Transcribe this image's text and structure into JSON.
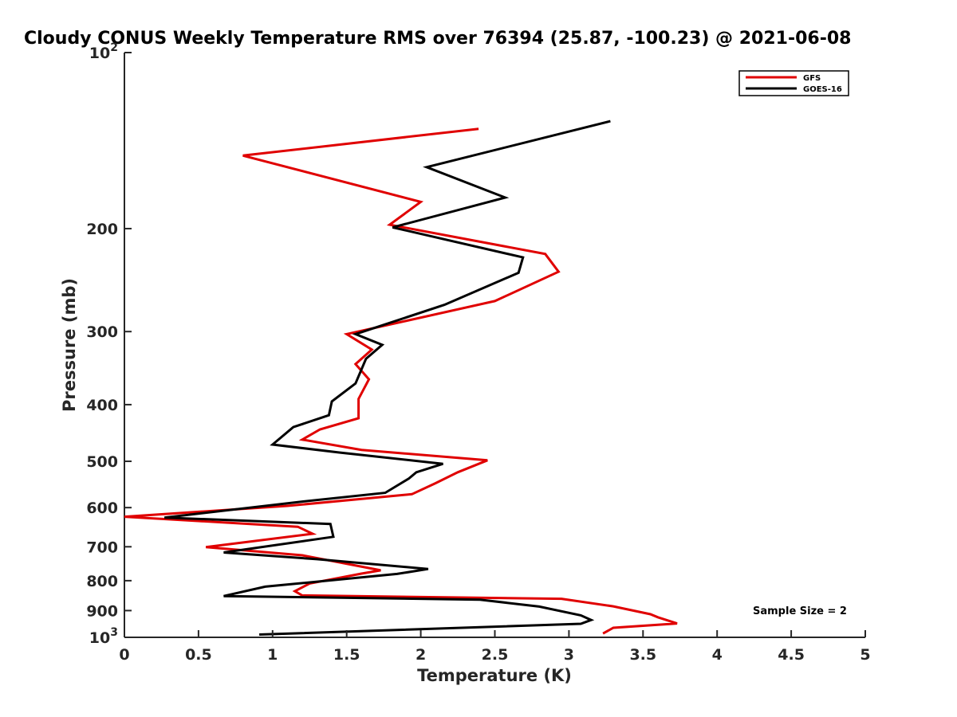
{
  "chart_data": {
    "type": "line",
    "title": "Cloudy CONUS Weekly Temperature RMS over 76394 (25.87, -100.23) @ 2021-06-08",
    "xlabel": "Temperature (K)",
    "ylabel": "Pressure (mb)",
    "xlim": [
      0,
      5
    ],
    "ylim": [
      100,
      1000
    ],
    "y_scale": "log",
    "y_reversed": true,
    "x_ticks": [
      "0",
      "0.5",
      "1",
      "1.5",
      "2",
      "2.5",
      "3",
      "3.5",
      "4",
      "4.5",
      "5"
    ],
    "y_ticks": [
      {
        "value": 100,
        "label": "10",
        "sup": "2"
      },
      {
        "value": 200,
        "label": "200"
      },
      {
        "value": 300,
        "label": "300"
      },
      {
        "value": 400,
        "label": "400"
      },
      {
        "value": 500,
        "label": "500"
      },
      {
        "value": 600,
        "label": "600"
      },
      {
        "value": 700,
        "label": "700"
      },
      {
        "value": 800,
        "label": "800"
      },
      {
        "value": 900,
        "label": "900"
      },
      {
        "value": 1000,
        "label": "10",
        "sup": "3"
      }
    ],
    "legend_position": "top-right",
    "grid": false,
    "annotation": "Sample Size = 2",
    "series": [
      {
        "name": "GFS",
        "color": "#e00000",
        "points": [
          [
            2.39,
            135
          ],
          [
            0.8,
            150
          ],
          [
            2.0,
            180
          ],
          [
            1.79,
            197
          ],
          [
            2.84,
            221
          ],
          [
            2.93,
            237
          ],
          [
            2.5,
            266
          ],
          [
            1.5,
            303
          ],
          [
            1.67,
            322
          ],
          [
            1.56,
            341
          ],
          [
            1.65,
            362
          ],
          [
            1.58,
            391
          ],
          [
            1.58,
            422
          ],
          [
            1.32,
            441
          ],
          [
            1.2,
            459
          ],
          [
            1.6,
            478
          ],
          [
            2.45,
            498
          ],
          [
            2.25,
            522
          ],
          [
            2.1,
            545
          ],
          [
            1.94,
            569
          ],
          [
            1.1,
            596
          ],
          [
            0.0,
            622
          ],
          [
            1.17,
            647
          ],
          [
            1.27,
            665
          ],
          [
            0.55,
            701
          ],
          [
            1.2,
            724
          ],
          [
            1.73,
            768
          ],
          [
            1.6,
            778
          ],
          [
            1.25,
            809
          ],
          [
            1.15,
            834
          ],
          [
            1.2,
            848
          ],
          [
            2.95,
            859
          ],
          [
            3.3,
            885
          ],
          [
            3.55,
            913
          ],
          [
            3.6,
            924
          ],
          [
            3.73,
            947
          ],
          [
            3.3,
            963
          ],
          [
            3.23,
            985
          ]
        ]
      },
      {
        "name": "GOES-16",
        "color": "#000000",
        "points": [
          [
            3.28,
            131
          ],
          [
            2.04,
            157
          ],
          [
            2.57,
            177
          ],
          [
            1.81,
            199
          ],
          [
            2.69,
            224
          ],
          [
            2.66,
            238
          ],
          [
            2.16,
            270
          ],
          [
            1.56,
            303
          ],
          [
            1.74,
            316
          ],
          [
            1.63,
            334
          ],
          [
            1.56,
            368
          ],
          [
            1.4,
            395
          ],
          [
            1.38,
            417
          ],
          [
            1.14,
            437
          ],
          [
            1.0,
            468
          ],
          [
            1.45,
            483
          ],
          [
            2.15,
            505
          ],
          [
            1.97,
            522
          ],
          [
            1.92,
            535
          ],
          [
            1.76,
            566
          ],
          [
            1.2,
            586
          ],
          [
            0.27,
            624
          ],
          [
            1.39,
            640
          ],
          [
            1.41,
            673
          ],
          [
            0.67,
            716
          ],
          [
            1.3,
            735
          ],
          [
            2.05,
            764
          ],
          [
            1.84,
            779
          ],
          [
            0.95,
            819
          ],
          [
            0.67,
            850
          ],
          [
            2.4,
            862
          ],
          [
            2.8,
            886
          ],
          [
            3.08,
            917
          ],
          [
            3.15,
            934
          ],
          [
            3.08,
            948
          ],
          [
            0.91,
            989
          ]
        ]
      }
    ]
  }
}
